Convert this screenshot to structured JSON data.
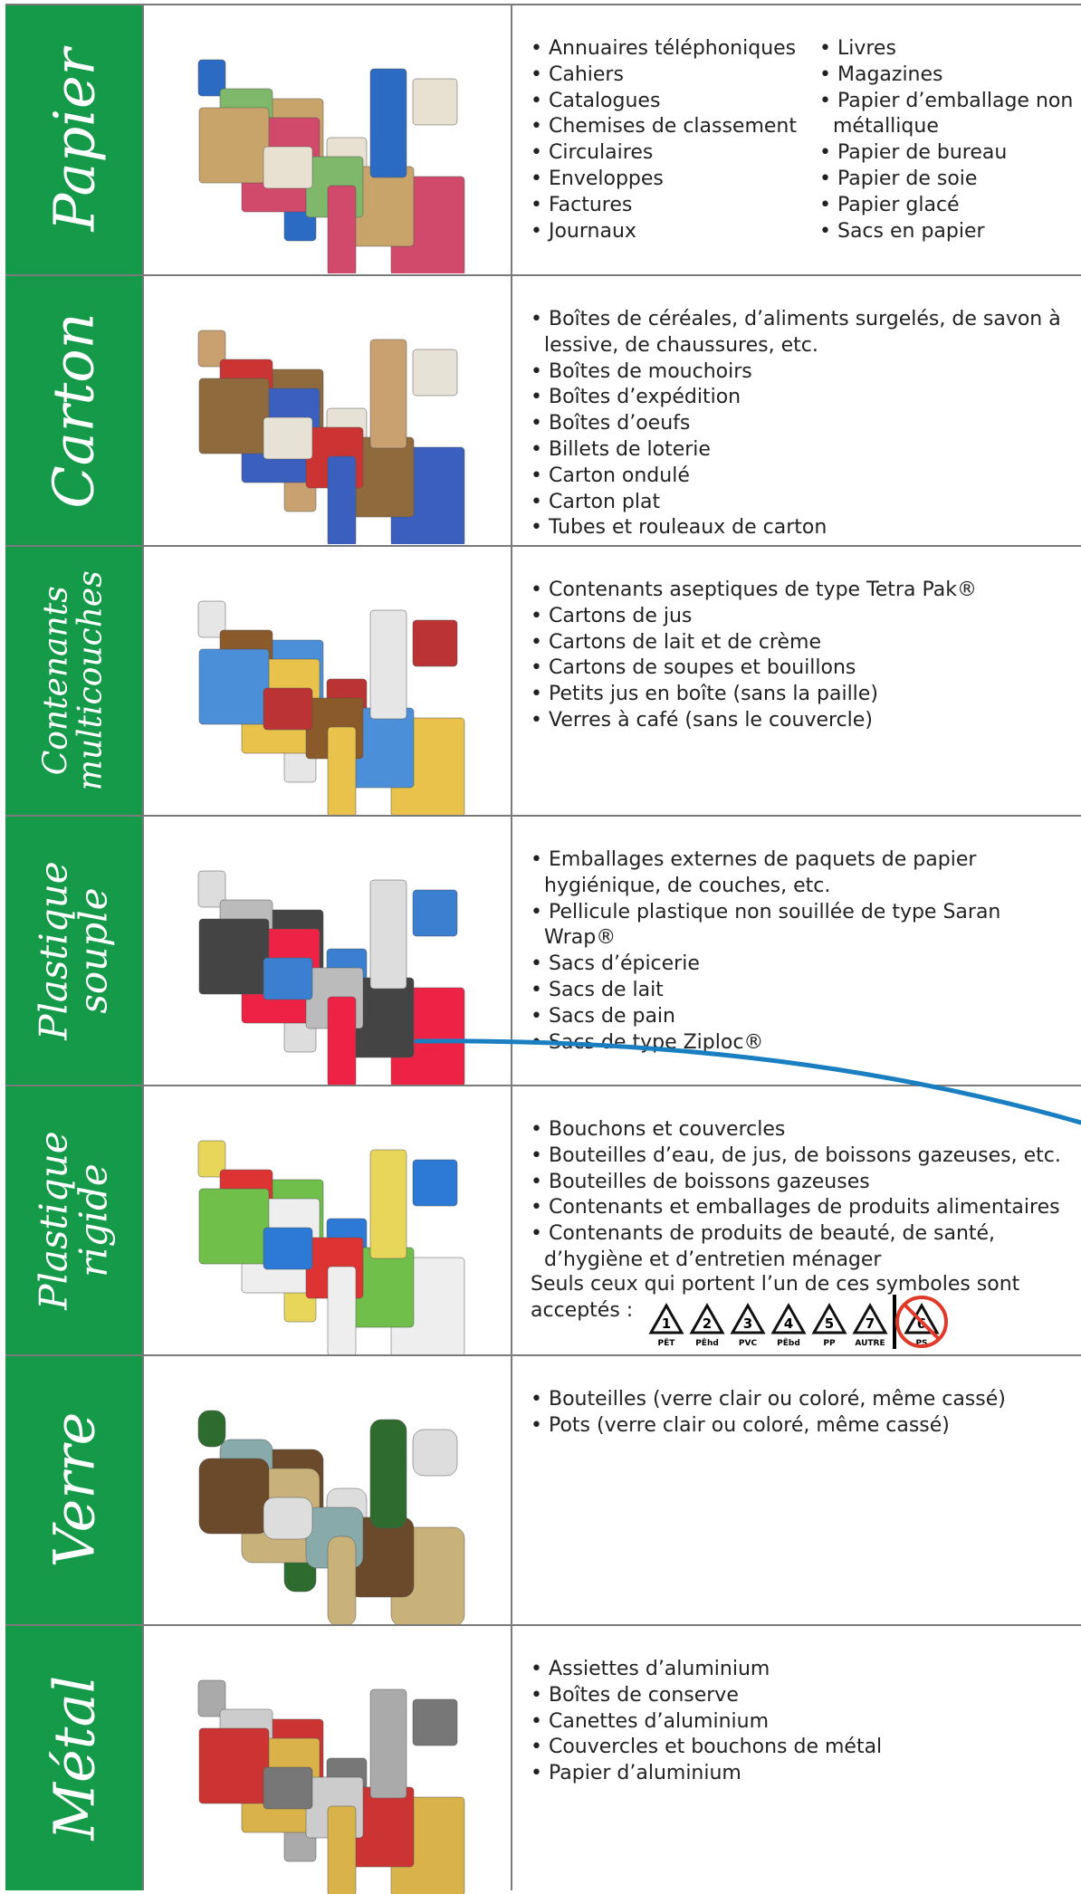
{
  "rows": [
    {
      "label": [
        "Papier"
      ],
      "items": [
        "Annuaires téléphoniques",
        "Cahiers",
        "Catalogues",
        "Chemises de classement",
        "Circulaires",
        "Enveloppes",
        "Factures",
        "Journaux"
      ],
      "items2": [
        "Livres",
        "Magazines",
        "Papier d’emballage non métallique",
        "Papier de bureau",
        "Papier de soie",
        "Papier glacé",
        "Sacs en papier"
      ]
    },
    {
      "label": [
        "Carton"
      ],
      "items": [
        "Boîtes de céréales, d’aliments surgelés, de savon à lessive, de chaussures, etc.",
        "Boîtes de mouchoirs",
        "Boîtes d’expédition",
        "Boîtes d’oeufs",
        "Billets de loterie",
        "Carton ondulé",
        "Carton plat",
        "Tubes et rouleaux de carton"
      ]
    },
    {
      "label": [
        "Contenants",
        "multicouches"
      ],
      "items": [
        "Contenants aseptiques de type Tetra Pak®",
        "Cartons de jus",
        "Cartons de lait et de crème",
        "Cartons de soupes et bouillons",
        "Petits jus en boîte (sans la paille)",
        "Verres à café (sans le couvercle)"
      ]
    },
    {
      "label": [
        "Plastique",
        "souple"
      ],
      "items": [
        "Emballages externes de paquets de papier hygiénique, de couches, etc.",
        "Pellicule plastique non souillée de type Saran Wrap®",
        "Sacs d’épicerie",
        "Sacs de lait",
        "Sacs de pain",
        "Sacs de type Ziploc®"
      ]
    },
    {
      "label": [
        "Plastique",
        "rigide"
      ],
      "items": [
        "Bouchons et couvercles",
        "Bouteilles d’eau, de jus, de boissons gazeuses, etc.",
        "Bouteilles de boissons gazeuses",
        "Contenants et emballages de produits alimentaires",
        "Contenants de produits de beauté, de santé, d’hygiène et d’entretien ménager"
      ],
      "note": "Seuls ceux qui portent l’un de ces symboles sont acceptés :",
      "symbols": [
        {
          "number": "1",
          "label": "PÊT"
        },
        {
          "number": "2",
          "label": "PÊhd"
        },
        {
          "number": "3",
          "label": "PVC"
        },
        {
          "number": "4",
          "label": "PÊbd"
        },
        {
          "number": "5",
          "label": "PP"
        },
        {
          "number": "7",
          "label": "AUTRE"
        },
        {
          "number": "6",
          "label": "PS"
        }
      ]
    },
    {
      "label": [
        "Verre"
      ],
      "items": [
        "Bouteilles (verre clair ou coloré, même cassé)",
        "Pots (verre clair ou coloré, même cassé)"
      ]
    },
    {
      "label": [
        "Métal"
      ],
      "items": [
        "Assiettes d’aluminium",
        "Boîtes de conserve",
        "Canettes d’aluminium",
        "Couvercles et bouchons de métal",
        "Papier d’aluminium"
      ]
    }
  ]
}
